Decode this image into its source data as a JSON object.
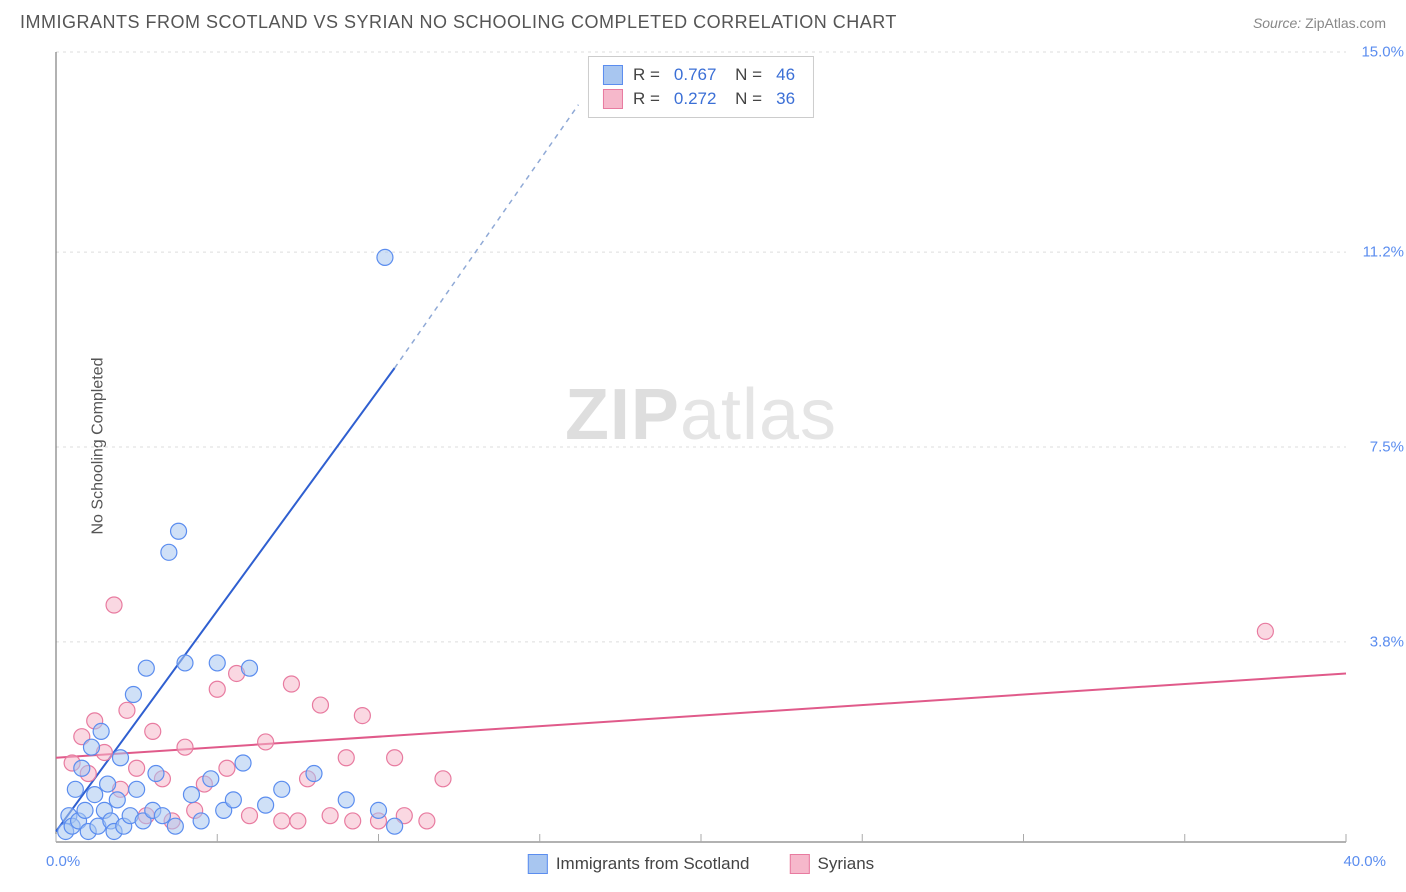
{
  "header": {
    "title": "IMMIGRANTS FROM SCOTLAND VS SYRIAN NO SCHOOLING COMPLETED CORRELATION CHART",
    "source_label": "Source:",
    "source_value": "ZipAtlas.com"
  },
  "watermark": {
    "zip": "ZIP",
    "atlas": "atlas"
  },
  "chart": {
    "type": "scatter",
    "xlim": [
      0,
      40
    ],
    "ylim": [
      0,
      15
    ],
    "x_axis": {
      "min_label": "0.0%",
      "max_label": "40.0%",
      "tick_positions": [
        0,
        5,
        10,
        15,
        20,
        25,
        30,
        35,
        40
      ]
    },
    "y_axis": {
      "label": "No Schooling Completed",
      "grid_values": [
        3.8,
        7.5,
        11.2,
        15.0
      ],
      "grid_labels": [
        "3.8%",
        "7.5%",
        "11.2%",
        "15.0%"
      ]
    },
    "axis_color": "#666666",
    "grid_color": "#dddddd",
    "tick_color": "#aaaaaa",
    "label_color": "#5b8def",
    "background_color": "#ffffff",
    "marker_radius": 8,
    "marker_opacity": 0.55,
    "line_width": 2,
    "series": [
      {
        "name": "Immigrants from Scotland",
        "color_fill": "#a8c6f0",
        "color_stroke": "#5b8def",
        "trend_color": "#2f5fd0",
        "trend_dash_color": "#8fa9d6",
        "r": "0.767",
        "n": "46",
        "trend": {
          "x1": 0,
          "y1": 0.2,
          "x2": 10.5,
          "y2": 9.0,
          "dash_to_x": 16.2,
          "dash_to_y": 14.0
        },
        "points": [
          [
            0.3,
            0.2
          ],
          [
            0.4,
            0.5
          ],
          [
            0.5,
            0.3
          ],
          [
            0.6,
            1.0
          ],
          [
            0.7,
            0.4
          ],
          [
            0.8,
            1.4
          ],
          [
            0.9,
            0.6
          ],
          [
            1.0,
            0.2
          ],
          [
            1.1,
            1.8
          ],
          [
            1.2,
            0.9
          ],
          [
            1.3,
            0.3
          ],
          [
            1.4,
            2.1
          ],
          [
            1.5,
            0.6
          ],
          [
            1.6,
            1.1
          ],
          [
            1.7,
            0.4
          ],
          [
            1.8,
            0.2
          ],
          [
            1.9,
            0.8
          ],
          [
            2.0,
            1.6
          ],
          [
            2.1,
            0.3
          ],
          [
            2.3,
            0.5
          ],
          [
            2.4,
            2.8
          ],
          [
            2.5,
            1.0
          ],
          [
            2.7,
            0.4
          ],
          [
            2.8,
            3.3
          ],
          [
            3.0,
            0.6
          ],
          [
            3.1,
            1.3
          ],
          [
            3.3,
            0.5
          ],
          [
            3.5,
            5.5
          ],
          [
            3.7,
            0.3
          ],
          [
            3.8,
            5.9
          ],
          [
            4.0,
            3.4
          ],
          [
            4.2,
            0.9
          ],
          [
            4.5,
            0.4
          ],
          [
            4.8,
            1.2
          ],
          [
            5.0,
            3.4
          ],
          [
            5.2,
            0.6
          ],
          [
            5.5,
            0.8
          ],
          [
            5.8,
            1.5
          ],
          [
            6.0,
            3.3
          ],
          [
            6.5,
            0.7
          ],
          [
            7.0,
            1.0
          ],
          [
            8.0,
            1.3
          ],
          [
            9.0,
            0.8
          ],
          [
            10.0,
            0.6
          ],
          [
            10.5,
            0.3
          ],
          [
            10.2,
            11.1
          ]
        ]
      },
      {
        "name": "Syrians",
        "color_fill": "#f6b8cb",
        "color_stroke": "#e87ba0",
        "trend_color": "#e05a8a",
        "r": "0.272",
        "n": "36",
        "trend": {
          "x1": 0,
          "y1": 1.6,
          "x2": 40,
          "y2": 3.2
        },
        "points": [
          [
            0.5,
            1.5
          ],
          [
            0.8,
            2.0
          ],
          [
            1.0,
            1.3
          ],
          [
            1.2,
            2.3
          ],
          [
            1.5,
            1.7
          ],
          [
            1.8,
            4.5
          ],
          [
            2.0,
            1.0
          ],
          [
            2.2,
            2.5
          ],
          [
            2.5,
            1.4
          ],
          [
            2.8,
            0.5
          ],
          [
            3.0,
            2.1
          ],
          [
            3.3,
            1.2
          ],
          [
            3.6,
            0.4
          ],
          [
            4.0,
            1.8
          ],
          [
            4.3,
            0.6
          ],
          [
            4.6,
            1.1
          ],
          [
            5.0,
            2.9
          ],
          [
            5.3,
            1.4
          ],
          [
            5.6,
            3.2
          ],
          [
            6.0,
            0.5
          ],
          [
            6.5,
            1.9
          ],
          [
            7.0,
            0.4
          ],
          [
            7.3,
            3.0
          ],
          [
            7.8,
            1.2
          ],
          [
            8.2,
            2.6
          ],
          [
            8.5,
            0.5
          ],
          [
            9.0,
            1.6
          ],
          [
            9.5,
            2.4
          ],
          [
            10.0,
            0.4
          ],
          [
            10.8,
            0.5
          ],
          [
            10.5,
            1.6
          ],
          [
            11.5,
            0.4
          ],
          [
            12.0,
            1.2
          ],
          [
            7.5,
            0.4
          ],
          [
            9.2,
            0.4
          ],
          [
            37.5,
            4.0
          ]
        ]
      }
    ],
    "legend_bottom": [
      {
        "label": "Immigrants from Scotland",
        "fill": "#a8c6f0",
        "stroke": "#5b8def"
      },
      {
        "label": "Syrians",
        "fill": "#f6b8cb",
        "stroke": "#e87ba0"
      }
    ]
  }
}
